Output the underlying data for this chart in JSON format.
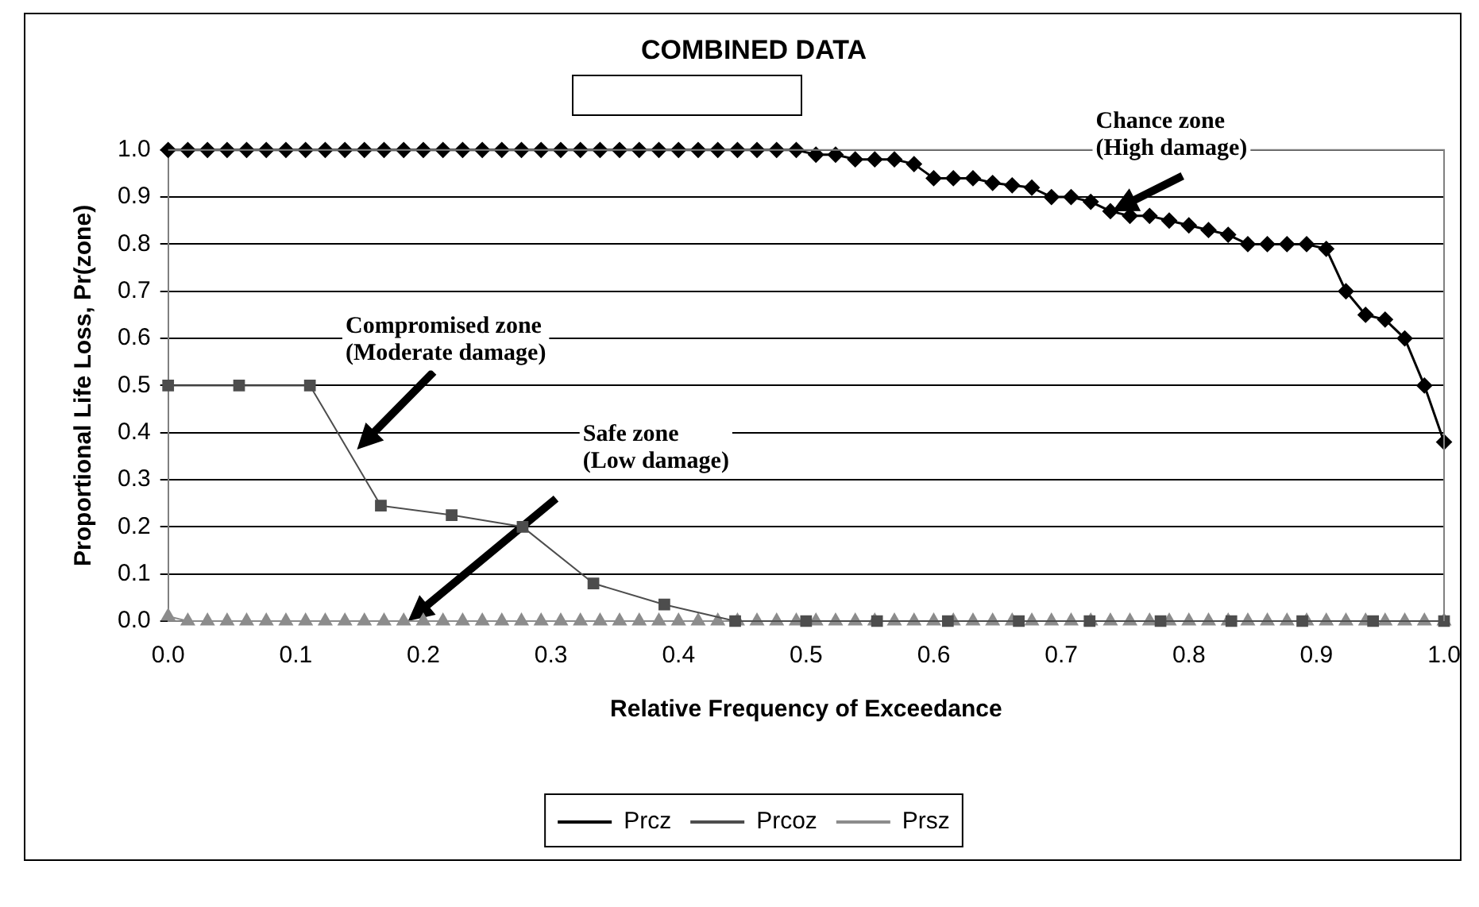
{
  "chart_data": {
    "type": "line",
    "title": "COMBINED DATA",
    "xlabel": "Relative Frequency of Exceedance",
    "ylabel": "Proportional Life Loss, Pr(zone)",
    "xlim": [
      0,
      1
    ],
    "ylim": [
      0,
      1
    ],
    "xticks": [
      {
        "value": 0,
        "label": "0.0"
      },
      {
        "value": 0.1,
        "label": "0.1"
      },
      {
        "value": 0.2,
        "label": "0.2"
      },
      {
        "value": 0.3,
        "label": "0.3"
      },
      {
        "value": 0.4,
        "label": "0.4"
      },
      {
        "value": 0.5,
        "label": "0.5"
      },
      {
        "value": 0.6,
        "label": "0.6"
      },
      {
        "value": 0.7,
        "label": "0.7"
      },
      {
        "value": 0.8,
        "label": "0.8"
      },
      {
        "value": 0.9,
        "label": "0.9"
      },
      {
        "value": 1,
        "label": "1.0"
      }
    ],
    "yticks": [
      {
        "value": 0,
        "label": "0.0"
      },
      {
        "value": 0.1,
        "label": "0.1"
      },
      {
        "value": 0.2,
        "label": "0.2"
      },
      {
        "value": 0.3,
        "label": "0.3"
      },
      {
        "value": 0.4,
        "label": "0.4"
      },
      {
        "value": 0.5,
        "label": "0.5"
      },
      {
        "value": 0.6,
        "label": "0.6"
      },
      {
        "value": 0.7,
        "label": "0.7"
      },
      {
        "value": 0.8,
        "label": "0.8"
      },
      {
        "value": 0.9,
        "label": "0.9"
      },
      {
        "value": 1,
        "label": "1.0"
      }
    ],
    "grid": "y",
    "legend": "bottom",
    "line_style": "solid",
    "series": [
      {
        "name": "Prcz",
        "color": "#000000",
        "marker": "diamond",
        "x": [
          0,
          0.0154,
          0.0308,
          0.0462,
          0.0615,
          0.0769,
          0.0923,
          0.1077,
          0.1231,
          0.1385,
          0.1538,
          0.1692,
          0.1846,
          0.2,
          0.2154,
          0.2308,
          0.2462,
          0.2615,
          0.2769,
          0.2923,
          0.3077,
          0.3231,
          0.3385,
          0.3538,
          0.3692,
          0.3846,
          0.4,
          0.4154,
          0.4308,
          0.4462,
          0.4615,
          0.4769,
          0.4923,
          0.5077,
          0.5231,
          0.5385,
          0.5538,
          0.5692,
          0.5846,
          0.6,
          0.6154,
          0.6308,
          0.6462,
          0.6615,
          0.6769,
          0.6923,
          0.7077,
          0.7231,
          0.7385,
          0.7538,
          0.7692,
          0.7846,
          0.8,
          0.8154,
          0.8308,
          0.8462,
          0.8615,
          0.8769,
          0.8923,
          0.9077,
          0.9231,
          0.9385,
          0.9538,
          0.9692,
          0.9846,
          1
        ],
        "values": [
          1,
          1,
          1,
          1,
          1,
          1,
          1,
          1,
          1,
          1,
          1,
          1,
          1,
          1,
          1,
          1,
          1,
          1,
          1,
          1,
          1,
          1,
          1,
          1,
          1,
          1,
          1,
          1,
          1,
          1,
          1,
          1,
          1,
          0.99,
          0.99,
          0.98,
          0.98,
          0.98,
          0.97,
          0.94,
          0.94,
          0.94,
          0.93,
          0.925,
          0.92,
          0.9,
          0.9,
          0.89,
          0.87,
          0.86,
          0.86,
          0.85,
          0.84,
          0.83,
          0.82,
          0.8,
          0.8,
          0.8,
          0.8,
          0.79,
          0.7,
          0.65,
          0.64,
          0.6,
          0.5,
          0.38
        ]
      },
      {
        "name": "Prcoz",
        "color": "#4d4d4d",
        "marker": "square",
        "x": [
          0,
          0.0556,
          0.1111,
          0.1667,
          0.2222,
          0.2778,
          0.3333,
          0.3889,
          0.4444,
          0.5,
          0.5556,
          0.6111,
          0.6667,
          0.7222,
          0.7778,
          0.8333,
          0.8889,
          0.9444,
          1
        ],
        "values": [
          0.5,
          0.5,
          0.5,
          0.245,
          0.225,
          0.2,
          0.08,
          0.035,
          0,
          0,
          0,
          0,
          0,
          0,
          0,
          0,
          0,
          0,
          0
        ]
      },
      {
        "name": "Prsz",
        "color": "#8c8c8c",
        "marker": "triangle",
        "x": [
          0,
          0.0154,
          0.0308,
          0.0462,
          0.0615,
          0.0769,
          0.0923,
          0.1077,
          0.1231,
          0.1385,
          0.1538,
          0.1692,
          0.1846,
          0.2,
          0.2154,
          0.2308,
          0.2462,
          0.2615,
          0.2769,
          0.2923,
          0.3077,
          0.3231,
          0.3385,
          0.3538,
          0.3692,
          0.3846,
          0.4,
          0.4154,
          0.4308,
          0.4462,
          0.4615,
          0.4769,
          0.4923,
          0.5077,
          0.5231,
          0.5385,
          0.5538,
          0.5692,
          0.5846,
          0.6,
          0.6154,
          0.6308,
          0.6462,
          0.6615,
          0.6769,
          0.6923,
          0.7077,
          0.7231,
          0.7385,
          0.7538,
          0.7692,
          0.7846,
          0.8,
          0.8154,
          0.8308,
          0.8462,
          0.8615,
          0.8769,
          0.8923,
          0.9077,
          0.9231,
          0.9385,
          0.9538,
          0.9692,
          0.9846,
          1
        ],
        "values": [
          0.01,
          0,
          0,
          0,
          0,
          0,
          0,
          0,
          0,
          0,
          0,
          0,
          0,
          0,
          0,
          0,
          0,
          0,
          0,
          0,
          0,
          0,
          0,
          0,
          0,
          0,
          0,
          0,
          0,
          0,
          0,
          0,
          0,
          0,
          0,
          0,
          0,
          0,
          0,
          0,
          0,
          0,
          0,
          0,
          0,
          0,
          0,
          0,
          0,
          0,
          0,
          0,
          0,
          0,
          0,
          0,
          0,
          0,
          0,
          0,
          0,
          0,
          0,
          0,
          0,
          0
        ]
      }
    ],
    "annotations": [
      "Chance zone\n(High damage)",
      "Compromised zone\n(Moderate damage)",
      "Safe zone\n(Low damage)"
    ]
  }
}
